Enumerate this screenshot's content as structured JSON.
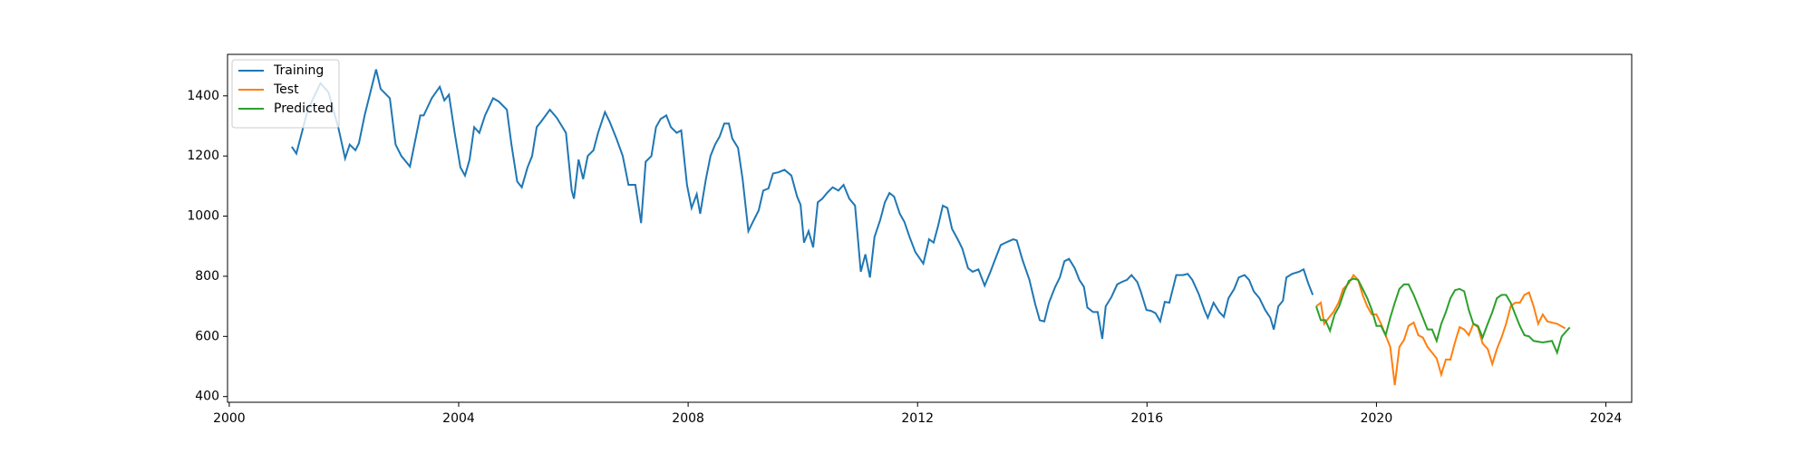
{
  "chart_data": {
    "type": "line",
    "xlim": [
      1999.97,
      2024.45
    ],
    "xticks": [
      2000,
      2004,
      2008,
      2012,
      2016,
      2020,
      2024
    ],
    "ylim": [
      381,
      1538
    ],
    "yticks": [
      400,
      600,
      800,
      1000,
      1200,
      1400
    ],
    "legend": "upper left",
    "grid": false,
    "series": [
      {
        "name": "Training",
        "color": "#1f77b4",
        "x": [
          2001.09,
          2001.17,
          2001.37,
          2001.59,
          2001.73,
          2001.9,
          2002.02,
          2002.1,
          2002.2,
          2002.26,
          2002.36,
          2002.56,
          2002.64,
          2002.8,
          2002.9,
          2003.0,
          2003.15,
          2003.33,
          2003.39,
          2003.53,
          2003.67,
          2003.75,
          2003.83,
          2003.93,
          2004.03,
          2004.11,
          2004.19,
          2004.27,
          2004.36,
          2004.46,
          2004.6,
          2004.7,
          2004.84,
          2004.92,
          2005.02,
          2005.1,
          2005.2,
          2005.28,
          2005.36,
          2005.44,
          2005.59,
          2005.71,
          2005.87,
          2005.97,
          2006.01,
          2006.09,
          2006.17,
          2006.25,
          2006.35,
          2006.43,
          2006.55,
          2006.63,
          2006.75,
          2006.86,
          2006.96,
          2007.08,
          2007.18,
          2007.26,
          2007.36,
          2007.44,
          2007.52,
          2007.62,
          2007.7,
          2007.8,
          2007.88,
          2007.98,
          2008.06,
          2008.15,
          2008.21,
          2008.31,
          2008.39,
          2008.47,
          2008.55,
          2008.63,
          2008.71,
          2008.77,
          2008.87,
          2008.95,
          2009.05,
          2009.13,
          2009.23,
          2009.31,
          2009.4,
          2009.48,
          2009.58,
          2009.68,
          2009.8,
          2009.9,
          2009.96,
          2010.02,
          2010.1,
          2010.18,
          2010.26,
          2010.34,
          2010.42,
          2010.52,
          2010.62,
          2010.71,
          2010.81,
          2010.91,
          2011.01,
          2011.09,
          2011.17,
          2011.25,
          2011.35,
          2011.43,
          2011.51,
          2011.59,
          2011.69,
          2011.77,
          2011.86,
          2011.96,
          2012.1,
          2012.2,
          2012.28,
          2012.36,
          2012.44,
          2012.52,
          2012.6,
          2012.7,
          2012.78,
          2012.88,
          2012.96,
          2013.06,
          2013.17,
          2013.27,
          2013.37,
          2013.45,
          2013.57,
          2013.67,
          2013.73,
          2013.83,
          2013.95,
          2014.05,
          2014.13,
          2014.21,
          2014.29,
          2014.4,
          2014.48,
          2014.56,
          2014.64,
          2014.74,
          2014.82,
          2014.9,
          2014.96,
          2015.06,
          2015.14,
          2015.22,
          2015.28,
          2015.38,
          2015.48,
          2015.56,
          2015.65,
          2015.73,
          2015.83,
          2015.89,
          2015.99,
          2016.07,
          2016.15,
          2016.23,
          2016.31,
          2016.39,
          2016.51,
          2016.63,
          2016.71,
          2016.79,
          2016.9,
          2017.0,
          2017.06,
          2017.16,
          2017.26,
          2017.34,
          2017.42,
          2017.52,
          2017.6,
          2017.7,
          2017.78,
          2017.86,
          2017.96,
          2018.06,
          2018.15,
          2018.21,
          2018.29,
          2018.37,
          2018.43,
          2018.53,
          2018.65,
          2018.73,
          2018.81,
          2018.89
        ],
        "values": [
          1231,
          1208,
          1354,
          1442,
          1412,
          1296,
          1192,
          1238,
          1219,
          1242,
          1335,
          1488,
          1423,
          1392,
          1238,
          1200,
          1165,
          1335,
          1335,
          1392,
          1430,
          1385,
          1404,
          1277,
          1162,
          1135,
          1188,
          1296,
          1277,
          1335,
          1392,
          1381,
          1354,
          1238,
          1115,
          1096,
          1162,
          1200,
          1296,
          1315,
          1354,
          1327,
          1277,
          1085,
          1058,
          1188,
          1123,
          1200,
          1219,
          1277,
          1346,
          1315,
          1258,
          1200,
          1104,
          1104,
          977,
          1181,
          1200,
          1296,
          1323,
          1335,
          1296,
          1277,
          1285,
          1104,
          1027,
          1073,
          1008,
          1123,
          1200,
          1238,
          1265,
          1308,
          1308,
          1258,
          1227,
          1123,
          950,
          981,
          1019,
          1085,
          1092,
          1142,
          1146,
          1154,
          1135,
          1065,
          1038,
          912,
          950,
          896,
          1046,
          1058,
          1077,
          1096,
          1085,
          1104,
          1058,
          1035,
          815,
          873,
          796,
          931,
          988,
          1046,
          1077,
          1065,
          1008,
          981,
          931,
          881,
          842,
          923,
          912,
          969,
          1035,
          1027,
          958,
          923,
          892,
          827,
          815,
          823,
          769,
          815,
          865,
          904,
          915,
          923,
          919,
          854,
          788,
          708,
          654,
          650,
          712,
          765,
          796,
          850,
          858,
          827,
          788,
          765,
          696,
          681,
          681,
          592,
          700,
          731,
          773,
          781,
          788,
          804,
          781,
          750,
          688,
          685,
          677,
          650,
          715,
          712,
          804,
          804,
          808,
          788,
          742,
          688,
          662,
          712,
          681,
          665,
          727,
          758,
          796,
          804,
          788,
          750,
          727,
          688,
          662,
          623,
          700,
          719,
          796,
          808,
          815,
          823,
          777,
          738
        ]
      },
      {
        "name": "Test",
        "color": "#ff7f0e",
        "x": [
          2018.95,
          2019.03,
          2019.09,
          2019.17,
          2019.25,
          2019.34,
          2019.42,
          2019.52,
          2019.6,
          2019.68,
          2019.76,
          2019.84,
          2019.92,
          2020.0,
          2020.08,
          2020.16,
          2020.24,
          2020.32,
          2020.4,
          2020.48,
          2020.56,
          2020.65,
          2020.73,
          2020.81,
          2020.89,
          2020.97,
          2021.05,
          2021.13,
          2021.21,
          2021.29,
          2021.37,
          2021.45,
          2021.53,
          2021.61,
          2021.69,
          2021.77,
          2021.85,
          2021.94,
          2022.02,
          2022.1,
          2022.18,
          2022.26,
          2022.34,
          2022.42,
          2022.5,
          2022.58,
          2022.66,
          2022.74,
          2022.82,
          2022.9,
          2022.98,
          2023.06,
          2023.15,
          2023.29
        ],
        "values": [
          700,
          712,
          642,
          662,
          681,
          712,
          758,
          777,
          804,
          788,
          738,
          700,
          673,
          673,
          642,
          604,
          565,
          438,
          565,
          588,
          635,
          646,
          604,
          596,
          565,
          546,
          527,
          473,
          523,
          523,
          581,
          631,
          623,
          604,
          642,
          631,
          577,
          558,
          508,
          558,
          596,
          642,
          700,
          712,
          712,
          738,
          746,
          700,
          642,
          673,
          650,
          646,
          642,
          627
        ]
      },
      {
        "name": "Predicted",
        "color": "#2ca02c",
        "x": [
          2018.95,
          2019.03,
          2019.11,
          2019.19,
          2019.27,
          2019.35,
          2019.44,
          2019.52,
          2019.6,
          2019.68,
          2019.76,
          2019.84,
          2019.92,
          2020.0,
          2020.08,
          2020.16,
          2020.24,
          2020.32,
          2020.4,
          2020.48,
          2020.56,
          2020.65,
          2020.73,
          2020.81,
          2020.89,
          2020.97,
          2021.05,
          2021.13,
          2021.21,
          2021.29,
          2021.37,
          2021.45,
          2021.53,
          2021.61,
          2021.69,
          2021.77,
          2021.85,
          2021.94,
          2022.02,
          2022.1,
          2022.18,
          2022.26,
          2022.34,
          2022.42,
          2022.5,
          2022.58,
          2022.66,
          2022.74,
          2022.9,
          2023.06,
          2023.15,
          2023.23,
          2023.37
        ],
        "values": [
          700,
          654,
          654,
          619,
          673,
          700,
          750,
          785,
          792,
          788,
          758,
          727,
          688,
          635,
          635,
          604,
          662,
          712,
          758,
          773,
          773,
          738,
          700,
          662,
          623,
          623,
          585,
          642,
          681,
          727,
          754,
          758,
          750,
          688,
          642,
          635,
          596,
          642,
          681,
          727,
          738,
          738,
          712,
          673,
          635,
          604,
          600,
          585,
          580,
          585,
          546,
          600,
          630
        ]
      }
    ]
  }
}
